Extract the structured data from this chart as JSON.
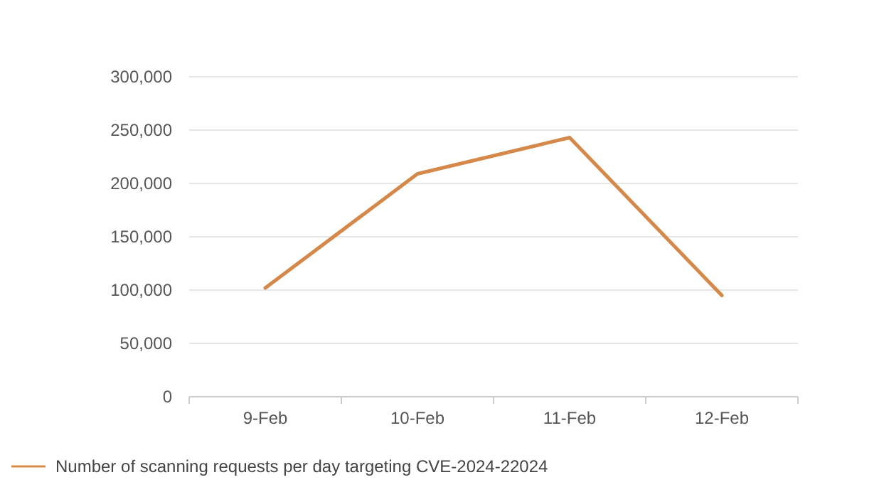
{
  "chart_data": {
    "type": "line",
    "categories": [
      "9-Feb",
      "10-Feb",
      "11-Feb",
      "12-Feb"
    ],
    "series": [
      {
        "name": "Number of scanning requests per day targeting CVE-2024-22024",
        "color": "#d4894a",
        "values": [
          102000,
          209000,
          243000,
          95000
        ]
      }
    ],
    "ylim": [
      0,
      300000
    ],
    "yticks": [
      {
        "value": 0,
        "label": "0"
      },
      {
        "value": 50000,
        "label": "50,000"
      },
      {
        "value": 100000,
        "label": "100,000"
      },
      {
        "value": 150000,
        "label": "150,000"
      },
      {
        "value": 200000,
        "label": "200,000"
      },
      {
        "value": 250000,
        "label": "250,000"
      },
      {
        "value": 300000,
        "label": "300,000"
      }
    ],
    "grid": "y",
    "legend": "bottom left",
    "marker": "none",
    "line_style": "solid"
  }
}
